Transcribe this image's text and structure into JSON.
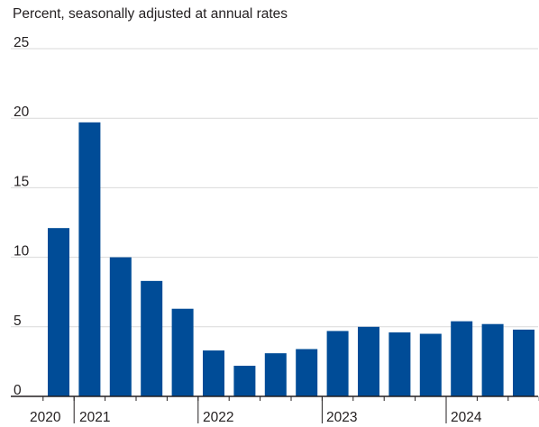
{
  "chart_data": {
    "type": "bar",
    "title": "Percent, seasonally adjusted at annual rates",
    "xlabel": "",
    "ylabel": "",
    "ylim": [
      0,
      25
    ],
    "y_ticks": [
      0,
      5,
      10,
      15,
      20,
      25
    ],
    "grid": true,
    "categories": [
      "2020 Q4",
      "2021 Q1",
      "2021 Q2",
      "2021 Q3",
      "2021 Q4",
      "2022 Q1",
      "2022 Q2",
      "2022 Q3",
      "2022 Q4",
      "2023 Q1",
      "2023 Q2",
      "2023 Q3",
      "2023 Q4",
      "2024 Q1",
      "2024 Q2",
      "2024 Q3"
    ],
    "values": [
      12.1,
      19.7,
      10.0,
      8.3,
      6.3,
      3.3,
      2.2,
      3.1,
      3.4,
      4.7,
      5.0,
      4.6,
      4.5,
      5.4,
      5.2,
      4.8
    ],
    "x_tick_labels": [
      "2020",
      "2021",
      "2022",
      "2023",
      "2024"
    ],
    "bar_color": "#004c97",
    "grid_color": "#d9d9d9",
    "axis_color": "#231f20"
  }
}
